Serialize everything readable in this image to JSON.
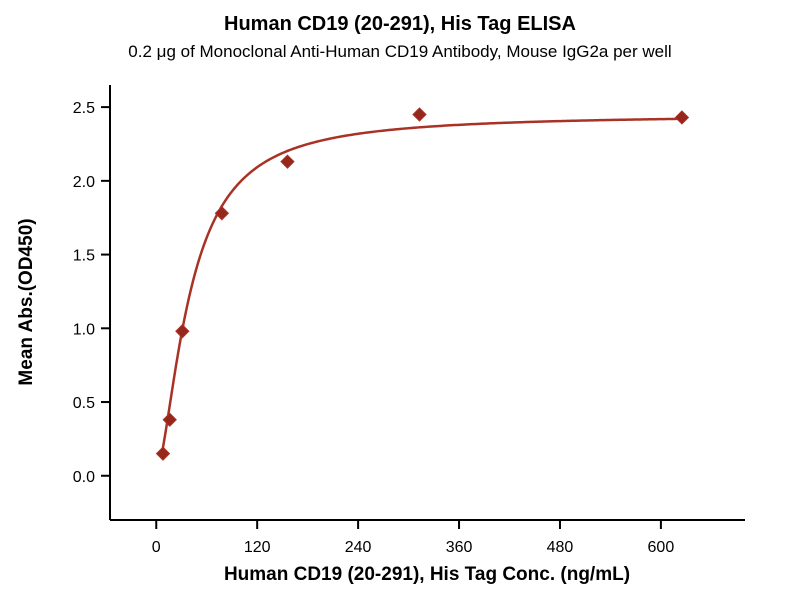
{
  "chart_data": {
    "type": "scatter",
    "title": "Human CD19 (20-291), His Tag ELISA",
    "subtitle": "0.2 μg of Monoclonal Anti-Human CD19 Antibody, Mouse IgG2a per well",
    "xlabel": "Human CD19 (20-291), His Tag Conc. (ng/mL)",
    "ylabel": "Mean Abs.(OD450)",
    "points": [
      {
        "x": 8,
        "y": 0.15
      },
      {
        "x": 16,
        "y": 0.38
      },
      {
        "x": 31,
        "y": 0.98
      },
      {
        "x": 78,
        "y": 1.78
      },
      {
        "x": 156,
        "y": 2.13
      },
      {
        "x": 313,
        "y": 2.45
      },
      {
        "x": 625,
        "y": 2.43
      }
    ],
    "fit_curve": {
      "model": "4PL",
      "bottom": 0.02,
      "top": 2.45,
      "ec50": 40,
      "hill": 1.6,
      "x_start": 8,
      "x_end": 625
    },
    "xlim": [
      -55,
      700
    ],
    "ylim": [
      -0.3,
      2.65
    ],
    "x_ticks": [
      "0",
      "120",
      "240",
      "360",
      "480",
      "600"
    ],
    "y_ticks": [
      "0.0",
      "0.5",
      "1.0",
      "1.5",
      "2.0",
      "2.5"
    ],
    "colors": {
      "curve": "#a93226",
      "marker": "#96271c",
      "axis": "#000000"
    },
    "grid": false,
    "legend": "none"
  }
}
